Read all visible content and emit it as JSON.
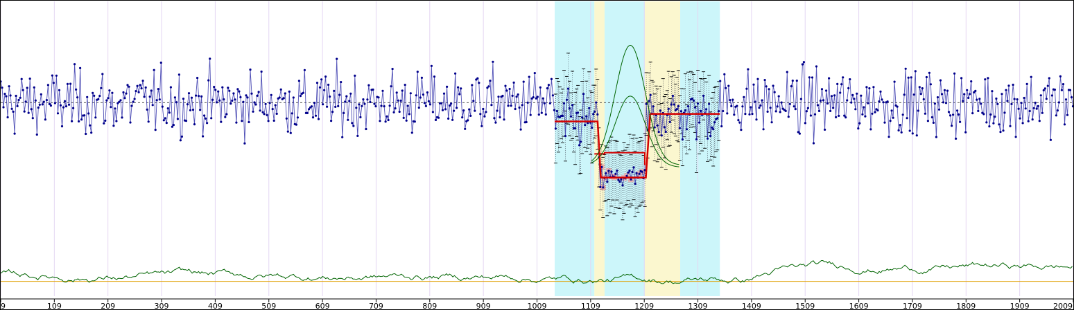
{
  "chart_data": {
    "type": "scatter",
    "title": "",
    "xlabel": "",
    "ylabel": "",
    "xlim": [
      9,
      2009
    ],
    "ylim_signal": [
      -4.2,
      4.0
    ],
    "ylim_lower": [
      -0.5,
      1.0
    ],
    "grid": true,
    "x_ticks": [
      9,
      109,
      209,
      309,
      409,
      509,
      609,
      709,
      809,
      909,
      1009,
      1109,
      1209,
      1309,
      1409,
      1509,
      1609,
      1709,
      1809,
      1909,
      2009
    ],
    "x_tick_labels": [
      "9",
      "109",
      "209",
      "309",
      "409",
      "509",
      "609",
      "709",
      "809",
      "909",
      "1009",
      "1109",
      "1209",
      "1309",
      "1409",
      "1509",
      "1609",
      "1709",
      "1809",
      "1909",
      "2009"
    ],
    "baseline_y": 0.0,
    "regions": [
      {
        "x0": 1042,
        "x1": 1116,
        "color": "#ccf6fa"
      },
      {
        "x0": 1116,
        "x1": 1135,
        "color": "#fbf7cf"
      },
      {
        "x0": 1135,
        "x1": 1210,
        "color": "#ccf6fa"
      },
      {
        "x0": 1210,
        "x1": 1276,
        "color": "#fbf7cf"
      },
      {
        "x0": 1276,
        "x1": 1350,
        "color": "#ccf6fa"
      }
    ],
    "segment_fit": [
      [
        1042,
        -0.75
      ],
      [
        1122,
        -0.75
      ],
      [
        1128,
        -3.0
      ],
      [
        1200,
        -3.0
      ],
      [
        1212,
        -3.0
      ],
      [
        1220,
        -0.45
      ],
      [
        1350,
        -0.45
      ]
    ],
    "segment_fit_inner": [
      [
        1116,
        -2.05
      ],
      [
        1135,
        -2.05
      ],
      [
        1135,
        -2.0
      ],
      [
        1210,
        -2.0
      ],
      [
        1210,
        -2.5
      ]
    ],
    "bell_curve": {
      "center": 1183,
      "amplitude": 2.4,
      "width": 28
    },
    "lower_track_baseline": 0.0,
    "series": [
      {
        "name": "",
        "color": "#00008b"
      },
      {
        "name": "",
        "color": "#006400"
      },
      {
        "name": "",
        "color": "#d40000"
      }
    ]
  }
}
